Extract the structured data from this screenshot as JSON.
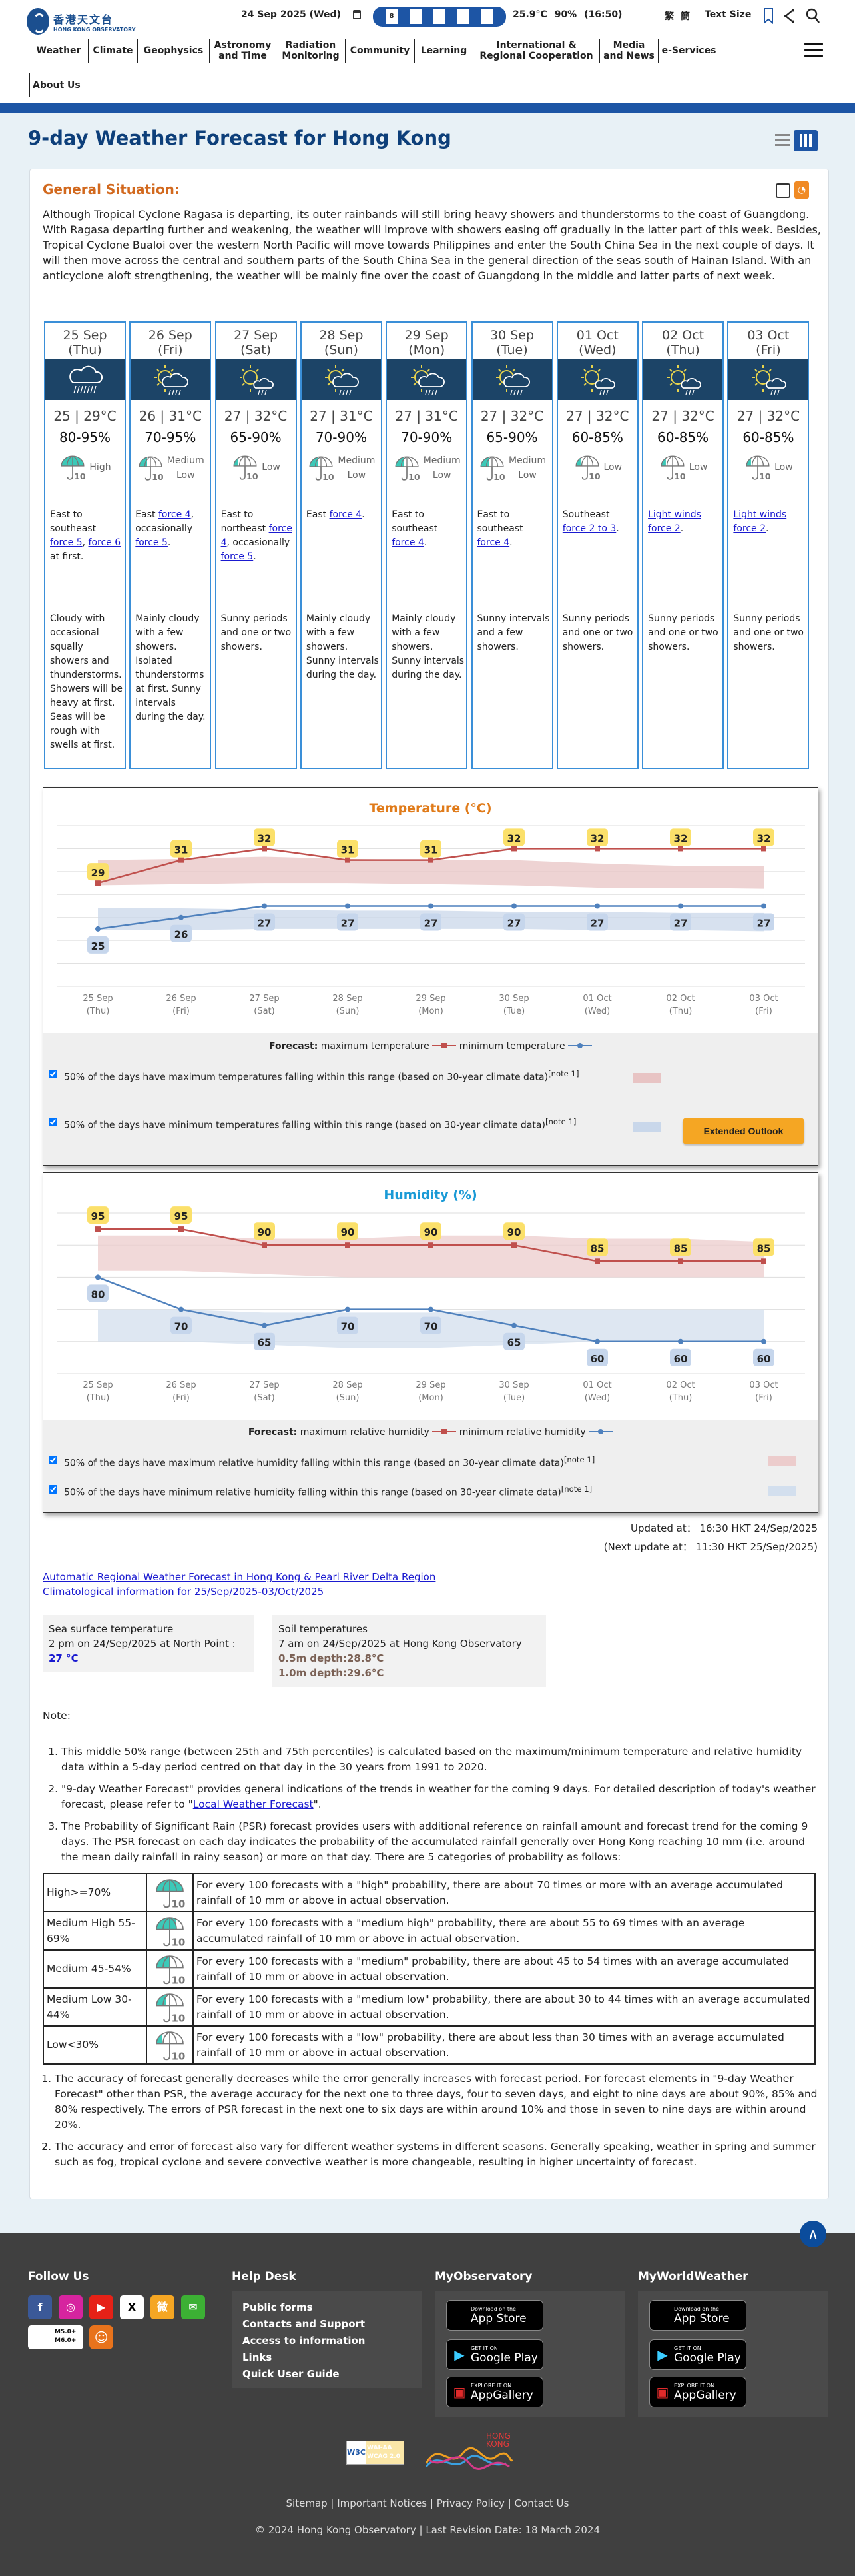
{
  "header": {
    "logo_zh": "香港天文台",
    "logo_en": "HONG KONG OBSERVATORY",
    "date": "24 Sep 2025 (Wed)",
    "warnings": [
      {
        "icon": "tropical-cyclone-signal-8-icon",
        "text": "8"
      },
      {
        "icon": "amber-rainstorm-icon",
        "text": ""
      },
      {
        "icon": "landslip-icon",
        "text": ""
      },
      {
        "icon": "special-announcement-icon",
        "text": ""
      },
      {
        "icon": "thunderstorm-icon",
        "text": ""
      }
    ],
    "temperature": "25.9°C",
    "humidity": "90%",
    "obs_time": "(16:50)",
    "lang_trad": "繁",
    "lang_simp": "簡",
    "text_size": "Text Size"
  },
  "nav": [
    "Weather",
    "Climate",
    "Geophysics",
    "Astronomy and Time",
    "Radiation Monitoring",
    "Community",
    "Learning",
    "International & Regional Cooperation",
    "Media and News",
    "e-Services"
  ],
  "nav_about": "About Us",
  "page_title": "9-day Weather Forecast for Hong Kong",
  "general_situation": {
    "title": "General Situation:",
    "text": "Although Tropical Cyclone Ragasa is departing, its outer rainbands will still bring heavy showers and thunderstorms to the coast of Guangdong. With Ragasa departing further and weakening, the weather will improve with showers easing off gradually in the latter part of this week. Besides, Tropical Cyclone Bualoi over the western North Pacific will move towards Philippines and enter the South China Sea in the next couple of days. It will then move across the central and southern parts of the South China Sea in the general direction of the seas south of Hainan Island. With an anticyclone aloft strengthening, the weather will be mainly fine over the coast of Guangdong in the middle and latter parts of next week."
  },
  "days": [
    {
      "date": "25 Sep",
      "dow": "(Thu)",
      "icon": "rain",
      "temp": "25 | 29°C",
      "rh": "80-95%",
      "psr": "High",
      "psr_fill": 1.0,
      "wind": [
        {
          "t": "East to southeast "
        },
        {
          "t": "force 5",
          "link": true
        },
        {
          "t": ", "
        },
        {
          "t": "force 6 ",
          "link": true
        },
        {
          "t": "at first."
        }
      ],
      "weather": "Cloudy with occasional squally showers and thunderstorms. Showers will be heavy at first. Seas will be rough with swells at first."
    },
    {
      "date": "26 Sep",
      "dow": "(Fri)",
      "icon": "sun-cloud-rain",
      "temp": "26 | 31°C",
      "rh": "70-95%",
      "psr": "Medium Low",
      "psr_fill": 0.35,
      "wind": [
        {
          "t": "East "
        },
        {
          "t": "force 4",
          "link": true
        },
        {
          "t": ", occasionally "
        },
        {
          "t": "force 5",
          "link": true
        },
        {
          "t": "."
        }
      ],
      "weather": "Mainly cloudy with a few showers. Isolated thunderstorms at first. Sunny intervals during the day."
    },
    {
      "date": "27 Sep",
      "dow": "(Sat)",
      "icon": "sun-cloud-light-rain",
      "temp": "27 | 32°C",
      "rh": "65-90%",
      "psr": "Low",
      "psr_fill": 0.2,
      "wind": [
        {
          "t": "East to northeast "
        },
        {
          "t": "force 4",
          "link": true
        },
        {
          "t": ", occasionally "
        },
        {
          "t": "force 5",
          "link": true
        },
        {
          "t": "."
        }
      ],
      "weather": "Sunny periods and one or two showers."
    },
    {
      "date": "28 Sep",
      "dow": "(Sun)",
      "icon": "sun-cloud-rain",
      "temp": "27 | 31°C",
      "rh": "70-90%",
      "psr": "Medium Low",
      "psr_fill": 0.35,
      "wind": [
        {
          "t": "East "
        },
        {
          "t": "force 4",
          "link": true
        },
        {
          "t": "."
        }
      ],
      "weather": "Mainly cloudy with a few showers. Sunny intervals during the day."
    },
    {
      "date": "29 Sep",
      "dow": "(Mon)",
      "icon": "sun-cloud-rain",
      "temp": "27 | 31°C",
      "rh": "70-90%",
      "psr": "Medium Low",
      "psr_fill": 0.35,
      "wind": [
        {
          "t": "East to southeast "
        },
        {
          "t": "force 4",
          "link": true
        },
        {
          "t": "."
        }
      ],
      "weather": "Mainly cloudy with a few showers. Sunny intervals during the day."
    },
    {
      "date": "30 Sep",
      "dow": "(Tue)",
      "icon": "sun-cloud-rain",
      "temp": "27 | 32°C",
      "rh": "65-90%",
      "psr": "Medium Low",
      "psr_fill": 0.35,
      "wind": [
        {
          "t": "East to southeast "
        },
        {
          "t": "force 4",
          "link": true
        },
        {
          "t": "."
        }
      ],
      "weather": "Sunny intervals and a few showers."
    },
    {
      "date": "01 Oct",
      "dow": "(Wed)",
      "icon": "sun-cloud-light-rain",
      "temp": "27 | 32°C",
      "rh": "60-85%",
      "psr": "Low",
      "psr_fill": 0.2,
      "wind": [
        {
          "t": "Southeast "
        },
        {
          "t": "force 2 to 3",
          "link": true
        },
        {
          "t": "."
        }
      ],
      "weather": "Sunny periods and one or two showers."
    },
    {
      "date": "02 Oct",
      "dow": "(Thu)",
      "icon": "sun-cloud-light-rain",
      "temp": "27 | 32°C",
      "rh": "60-85%",
      "psr": "Low",
      "psr_fill": 0.2,
      "wind": [
        {
          "t": "Light winds",
          "link": true
        },
        {
          "t": " "
        },
        {
          "t": "force 2",
          "link": true
        },
        {
          "t": "."
        }
      ],
      "weather": "Sunny periods and one or two showers."
    },
    {
      "date": "03 Oct",
      "dow": "(Fri)",
      "icon": "sun-cloud-light-rain",
      "temp": "27 | 32°C",
      "rh": "60-85%",
      "psr": "Low",
      "psr_fill": 0.2,
      "wind": [
        {
          "t": "Light winds",
          "link": true
        },
        {
          "t": " "
        },
        {
          "t": "force 2",
          "link": true
        },
        {
          "t": "."
        }
      ],
      "weather": "Sunny periods and one or two showers."
    }
  ],
  "chart_data": [
    {
      "type": "line",
      "title": "Temperature (°C)",
      "categories": [
        "25 Sep",
        "26 Sep",
        "27 Sep",
        "28 Sep",
        "29 Sep",
        "30 Sep",
        "01 Oct",
        "02 Oct",
        "03 Oct"
      ],
      "subcategories": [
        "(Thu)",
        "(Fri)",
        "(Sat)",
        "(Sun)",
        "(Mon)",
        "(Tue)",
        "(Wed)",
        "(Thu)",
        "(Fri)"
      ],
      "ylim": [
        20,
        34
      ],
      "grid_step": 2,
      "series": [
        {
          "name": "maximum temperature",
          "color": "#c0504d",
          "marker": "square",
          "values": [
            29,
            31,
            32,
            31,
            31,
            32,
            32,
            32,
            32
          ]
        },
        {
          "name": "minimum temperature",
          "color": "#4f81bd",
          "marker": "circle",
          "values": [
            25,
            26,
            27,
            27,
            27,
            27,
            27,
            27,
            27
          ]
        }
      ],
      "bands": [
        {
          "color": "#e8c4c4",
          "upper": [
            31.0,
            31.1,
            31.3,
            31.1,
            31.0,
            31.0,
            30.7,
            30.5,
            30.5
          ],
          "lower": [
            28.8,
            28.9,
            29.0,
            29.0,
            28.9,
            28.8,
            28.6,
            28.6,
            28.5
          ]
        },
        {
          "color": "#c9d7ea",
          "upper": [
            26.8,
            26.8,
            26.7,
            26.6,
            26.6,
            26.5,
            26.5,
            26.4,
            26.4
          ],
          "lower": [
            24.9,
            24.9,
            25.0,
            25.0,
            25.0,
            25.0,
            24.9,
            24.9,
            24.8
          ]
        }
      ],
      "legend": {
        "prefix": "Forecast:",
        "max_label": "maximum temperature",
        "min_label": "minimum temperature",
        "band_max": "50% of the days have maximum temperatures falling within this range (based on 30-year climate data)",
        "band_min": "50% of the days have minimum temperatures falling within this range (based on 30-year climate data)",
        "note": "[note 1]"
      },
      "button": "Extended Outlook"
    },
    {
      "type": "line",
      "title": "Humidity (%)",
      "categories": [
        "25 Sep",
        "26 Sep",
        "27 Sep",
        "28 Sep",
        "29 Sep",
        "30 Sep",
        "01 Oct",
        "02 Oct",
        "03 Oct"
      ],
      "subcategories": [
        "(Thu)",
        "(Fri)",
        "(Sat)",
        "(Sun)",
        "(Mon)",
        "(Tue)",
        "(Wed)",
        "(Thu)",
        "(Fri)"
      ],
      "ylim": [
        50,
        100
      ],
      "grid_step": 10,
      "series": [
        {
          "name": "maximum relative humidity",
          "color": "#c0504d",
          "marker": "square",
          "values": [
            95,
            95,
            90,
            90,
            90,
            90,
            85,
            85,
            85
          ]
        },
        {
          "name": "minimum relative humidity",
          "color": "#4f81bd",
          "marker": "circle",
          "values": [
            80,
            70,
            65,
            70,
            70,
            65,
            60,
            60,
            60
          ]
        }
      ],
      "bands": [
        {
          "color": "#eccccc",
          "upper": [
            93,
            93,
            92,
            92,
            93,
            93,
            92,
            92,
            91
          ],
          "lower": [
            82,
            82,
            81,
            80,
            80,
            80,
            80,
            80,
            80
          ]
        },
        {
          "color": "#d3dfee",
          "upper": [
            70,
            70,
            69,
            69,
            69,
            70,
            70,
            70,
            70
          ],
          "lower": [
            60,
            60,
            59,
            58,
            58,
            59,
            60,
            60,
            60
          ]
        }
      ],
      "legend": {
        "prefix": "Forecast:",
        "max_label": "maximum relative humidity",
        "min_label": "minimum relative humidity",
        "band_max": "50% of the days have maximum relative humidity falling within this range (based on 30-year climate data)",
        "band_min": "50% of the days have minimum relative humidity falling within this range (based on 30-year climate data)",
        "note": "[note 1]"
      }
    }
  ],
  "updated": "Updated at： 16:30 HKT 24/Sep/2025",
  "next_update": "(Next update at： 11:30 HKT 25/Sep/2025)",
  "links": [
    "Automatic Regional Weather Forecast in Hong Kong & Pearl River Delta Region",
    "Climatological information for 25/Sep/2025-03/Oct/2025"
  ],
  "sea_temp": {
    "title": "Sea surface temperature",
    "line": "2 pm on 24/Sep/2025 at North Point :",
    "value": "27 °C"
  },
  "soil_temp": {
    "title": "Soil temperatures",
    "line": "7 am on 24/Sep/2025 at Hong Kong Observatory",
    "d1": "0.5m depth:28.8°C",
    "d2": "1.0m depth:29.6°C"
  },
  "notes": {
    "title": "Note:",
    "n1": "This middle 50% range (between 25th and 75th percentiles) is calculated based on the maximum/minimum temperature and relative humidity data within a 5-day period centred on that day in the 30 years from 1991 to 2020.",
    "n2_pre": "\"9-day Weather Forecast\" provides general indications of the trends in weather for the coming 9 days. For detailed description of today's weather forecast, please refer to \"",
    "n2_link": "Local Weather Forecast",
    "n2_post": "\".",
    "n3": "The Probability of Significant Rain (PSR) forecast provides users with additional reference on rainfall amount and forecast trend for the coming 9 days. The PSR forecast on each day indicates the probability of the accumulated rainfall generally over Hong Kong reaching 10 mm (i.e. around the mean daily rainfall in rainy season) or more on that day. There are 5 categories of probability as follows:"
  },
  "psr_table": [
    {
      "cat": "High>=70%",
      "fill": 1.0,
      "desc": "For every 100 forecasts with a \"high\" probability, there are about 70 times or more with an average accumulated rainfall of 10 mm or above in actual observation."
    },
    {
      "cat": "Medium High 55-69%",
      "fill": 0.75,
      "desc": "For every 100 forecasts with a \"medium high\" probability, there are about 55 to 69 times with an average accumulated rainfall of 10 mm or above in actual observation."
    },
    {
      "cat": "Medium 45-54%",
      "fill": 0.5,
      "desc": "For every 100 forecasts with a \"medium\" probability, there are about 45 to 54 times with an average accumulated rainfall of 10 mm or above in actual observation."
    },
    {
      "cat": "Medium Low 30-44%",
      "fill": 0.35,
      "desc": "For every 100 forecasts with a \"medium low\" probability, there are about 30 to 44 times with an average accumulated rainfall of 10 mm or above in actual observation."
    },
    {
      "cat": "Low<30%",
      "fill": 0.2,
      "desc": "For every 100 forecasts with a \"low\" probability, there are about less than 30 times with an average accumulated rainfall of 10 mm or above in actual observation."
    }
  ],
  "psr_icon_text": "10",
  "accuracy_notes": [
    "The accuracy of forecast generally decreases while the error generally increases with forecast period. For forecast elements in \"9-day Weather Forecast\" other than PSR, the average accuracy for the next one to three days, four to seven days, and eight to nine days are about 90%, 85% and 80% respectively. The errors of PSR forecast in the next one to six days are within around 10% and those in seven to nine days are within around 20%.",
    "The accuracy and error of forecast also vary for different weather systems in different seasons. Generally speaking, weather in spring and summer such as fog, tropical cyclone and severe convective weather is more changeable, resulting in higher uncertainty of forecast."
  ],
  "footer": {
    "follow_us": "Follow Us",
    "help_desk": "Help Desk",
    "my_observatory": "MyObservatory",
    "my_world_weather": "MyWorldWeather",
    "social": [
      {
        "name": "facebook",
        "glyph": "f",
        "color": "#3b5998"
      },
      {
        "name": "instagram",
        "glyph": "◎",
        "color": "#d6249f"
      },
      {
        "name": "youtube",
        "glyph": "▶",
        "color": "#e62117"
      },
      {
        "name": "x",
        "glyph": "X",
        "color": "#ffffff"
      },
      {
        "name": "weibo",
        "glyph": "微",
        "color": "#f5a623"
      },
      {
        "name": "wechat",
        "glyph": "✉",
        "color": "#3cb034"
      }
    ],
    "quake_badge": "M5.0+ M6.0+",
    "help_items": [
      "Public forms",
      "Contacts and Support",
      "Access to information",
      "Links",
      "Quick User Guide"
    ],
    "badges": [
      {
        "small": "Download on the",
        "large": "App Store",
        "icon": "apple"
      },
      {
        "small": "GET IT ON",
        "large": "Google Play",
        "icon": "play"
      },
      {
        "small": "EXPLORE IT ON",
        "large": "AppGallery",
        "icon": "huawei"
      }
    ],
    "wcag_badge": "WAI-AA WCAG 2.0",
    "brand_hk": "HONG KONG",
    "bottom_links": [
      "Sitemap",
      "Important Notices",
      "Privacy Policy",
      "Contact Us"
    ],
    "copyright": "© 2024 Hong Kong Observatory",
    "revision": "Last Revision Date: 18 March 2024"
  }
}
